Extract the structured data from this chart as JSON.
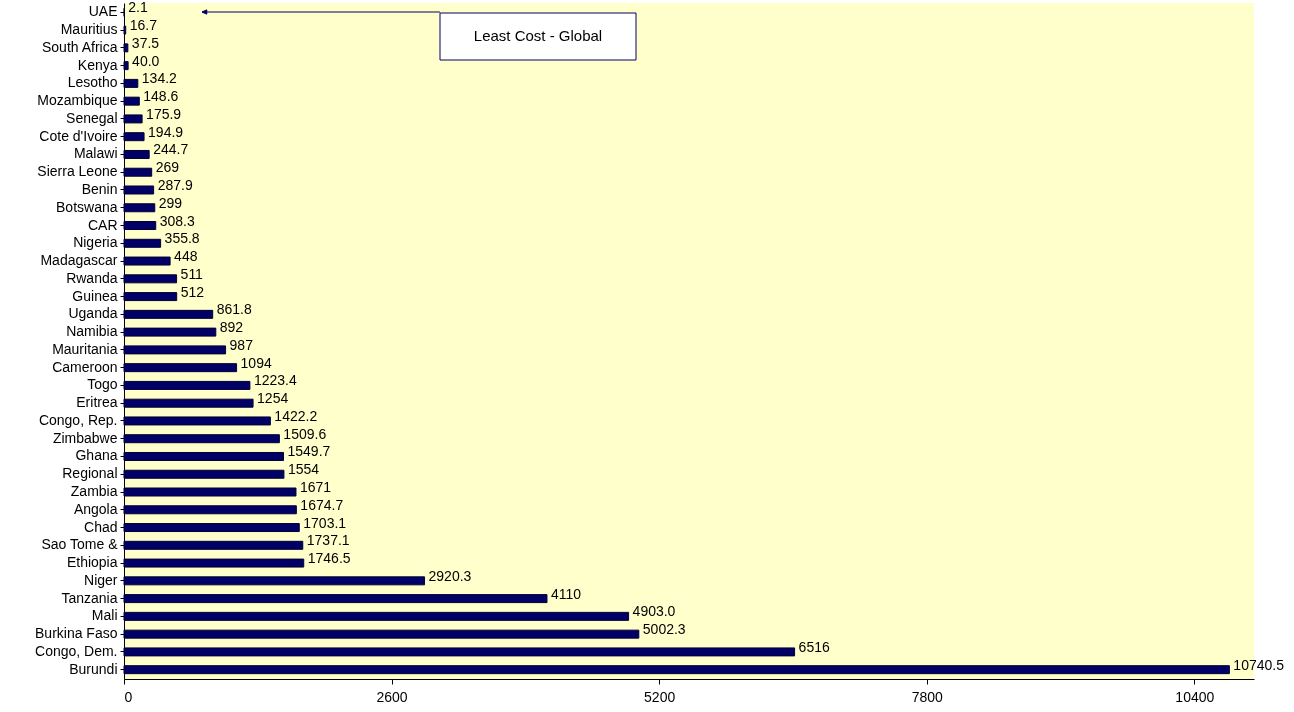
{
  "chart_data": {
    "type": "bar",
    "orientation": "horizontal",
    "categories": [
      "UAE",
      "Mauritius",
      "South Africa",
      "Kenya",
      "Lesotho",
      "Mozambique",
      "Senegal",
      "Cote d'Ivoire",
      "Malawi",
      "Sierra Leone",
      "Benin",
      "Botswana",
      "CAR",
      "Nigeria",
      "Madagascar",
      "Rwanda",
      "Guinea",
      "Uganda",
      "Namibia",
      "Mauritania",
      "Cameroon",
      "Togo",
      "Eritrea",
      "Congo, Rep.",
      "Zimbabwe",
      "Ghana",
      "Regional",
      "Zambia",
      "Angola",
      "Chad",
      "Sao Tome &",
      "Ethiopia",
      "Niger",
      "Tanzania",
      "Mali",
      "Burkina Faso",
      "Congo, Dem.",
      "Burundi"
    ],
    "values": [
      2.1,
      16.7,
      37.5,
      40.0,
      134.2,
      148.6,
      175.9,
      194.9,
      244.7,
      269,
      287.9,
      299,
      308.3,
      355.8,
      448,
      511,
      512,
      861.8,
      892,
      987,
      1094,
      1223.4,
      1254,
      1422.2,
      1509.6,
      1549.7,
      1554,
      1671,
      1674.7,
      1703.1,
      1737.1,
      1746.5,
      2920.3,
      4110,
      4903.0,
      5002.3,
      6516,
      10740.5
    ],
    "value_labels": [
      "2.1",
      "16.7",
      "37.5",
      "40.0",
      "134.2",
      "148.6",
      "175.9",
      "194.9",
      "244.7",
      "269",
      "287.9",
      "299",
      "308.3",
      "355.8",
      "448",
      "511",
      "512",
      "861.8",
      "892",
      "987",
      "1094",
      "1223.4",
      "1254",
      "1422.2",
      "1509.6",
      "1549.7",
      "1554",
      "1671",
      "1674.7",
      "1703.1",
      "1737.1",
      "1746.5",
      "2920.3",
      "4110",
      "4903.0",
      "5002.3",
      "6516",
      "10740.5"
    ],
    "color": "#000066",
    "xlim": [
      0,
      10980
    ],
    "xticks": [
      0,
      2600,
      5200,
      7800,
      10400
    ],
    "annotations": [
      "Least Cost - Global"
    ]
  }
}
